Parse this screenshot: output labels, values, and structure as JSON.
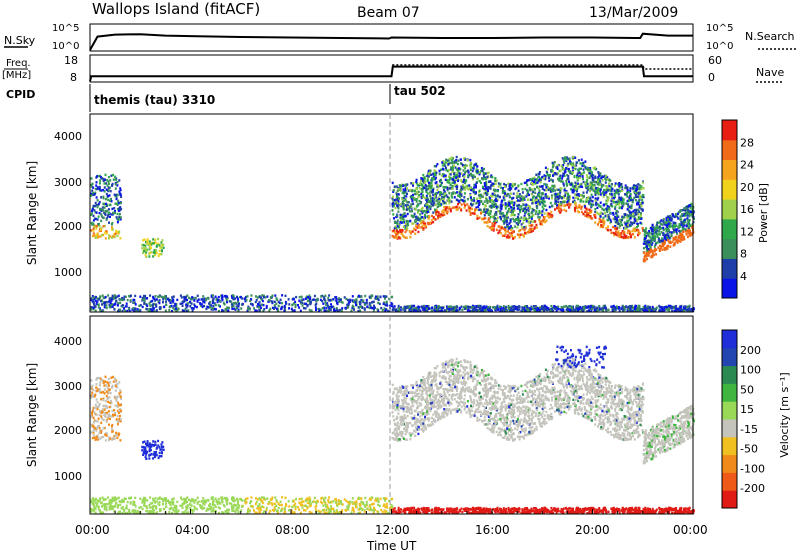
{
  "header": {
    "station": "Wallops Island (fitACF)",
    "beam": "Beam 07",
    "date": "13/Mar/2009"
  },
  "noise_panel": {
    "left_label": "N.Sky",
    "left_ticks": [
      "10^5",
      "10^0"
    ],
    "right_label": "N.Search",
    "right_ticks": [
      "10^5",
      "10^0"
    ]
  },
  "freq_panel": {
    "left_label_1": "Freq.",
    "left_label_2": "[MHz]",
    "left_ticks": [
      "18",
      "8"
    ],
    "right_label": "Nave",
    "right_ticks": [
      "60",
      "0"
    ]
  },
  "cpid_panel": {
    "label": "CPID",
    "mode_1": "themis (tau) 3310",
    "mode_2": "tau 502"
  },
  "time_axis": {
    "label": "Time UT",
    "ticks": [
      "00:00",
      "04:00",
      "08:00",
      "12:00",
      "16:00",
      "20:00",
      "00:00"
    ]
  },
  "colors": {
    "power": [
      "#0a14e6",
      "#1f3fa8",
      "#3a8f5a",
      "#2ea84b",
      "#9fd24a",
      "#f0d21c",
      "#f5a41e",
      "#f06a17",
      "#e81e13"
    ],
    "velocity": [
      "#1f2ed8",
      "#2446b0",
      "#2a8a52",
      "#3fb63f",
      "#9ad858",
      "#c4c4bc",
      "#f0c020",
      "#f08a1a",
      "#ef5a18",
      "#e01a14"
    ]
  },
  "chart_data": [
    {
      "type": "line",
      "title": "",
      "series": [
        {
          "name": "N.Sky",
          "x_hours": [
            0,
            0.3,
            1,
            2,
            3,
            4,
            6,
            8,
            10,
            11.9,
            12,
            14,
            16,
            18,
            20,
            21.9,
            22,
            23,
            24
          ],
          "log10_values": [
            0,
            2.8,
            3.2,
            3.3,
            3.0,
            2.9,
            2.7,
            2.6,
            2.5,
            2.4,
            2.6,
            2.5,
            2.5,
            2.6,
            2.6,
            2.5,
            3.4,
            3.0,
            3.0
          ]
        }
      ],
      "ylim": [
        0,
        5
      ]
    },
    {
      "type": "line",
      "series": [
        {
          "name": "Freq.",
          "x_hours": [
            0,
            0.05,
            12,
            12.05,
            22,
            22.05,
            24
          ],
          "values": [
            8,
            10,
            10,
            14,
            14,
            10,
            10
          ],
          "ylim": [
            8,
            18
          ]
        },
        {
          "name": "Nave",
          "x_hours": [
            0,
            0.05,
            12,
            12.05,
            22,
            22.05,
            24
          ],
          "values": [
            0,
            12,
            12,
            40,
            40,
            30,
            30
          ],
          "ylim": [
            0,
            60
          ]
        }
      ]
    },
    {
      "type": "heatmap",
      "ylabel": "Slant Range [km]",
      "xlabel": "Time UT",
      "xlim": [
        0,
        24
      ],
      "ylim": [
        180,
        4500
      ],
      "yticks": [
        "1000",
        "2000",
        "3000",
        "4000"
      ],
      "colorbar_label": "Power [dB]",
      "colorbar_ticks": [
        "4",
        "8",
        "12",
        "16",
        "20",
        "24",
        "28"
      ],
      "colorbar_range": [
        0,
        30
      ]
    },
    {
      "type": "heatmap",
      "ylabel": "Slant Range [km]",
      "xlabel": "Time UT",
      "xlim": [
        0,
        24
      ],
      "ylim": [
        180,
        4500
      ],
      "yticks": [
        "1000",
        "2000",
        "3000",
        "4000"
      ],
      "colorbar_label": "Velocity [m s⁻¹]",
      "colorbar_ticks": [
        "200",
        "100",
        "50",
        "15",
        "-15",
        "-50",
        "-100",
        "-200"
      ]
    }
  ]
}
